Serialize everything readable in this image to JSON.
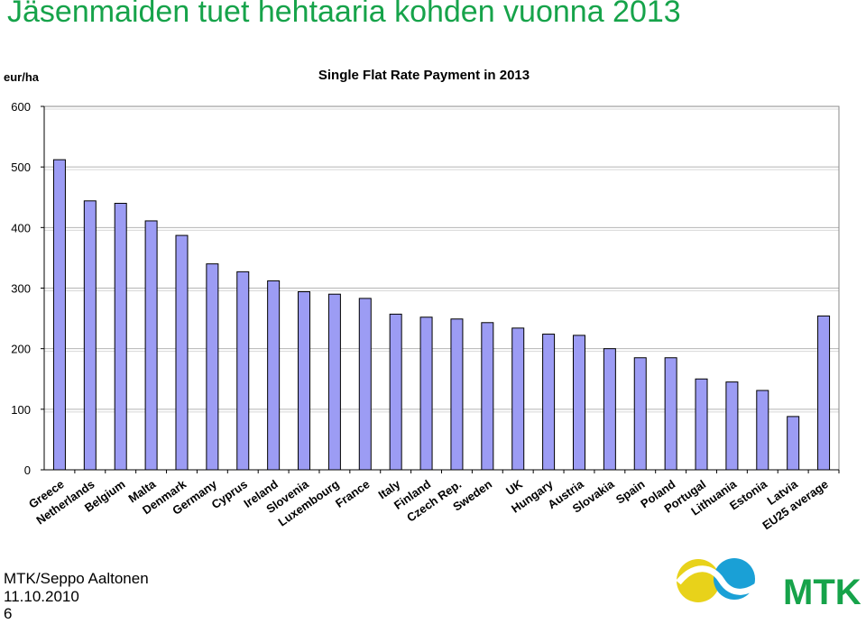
{
  "slide": {
    "title": "Jäsenmaiden tuet hehtaaria kohden vuonna 2013",
    "footer_author": "MTK/Seppo Aaltonen",
    "footer_date": "11.10.2010",
    "page_number": "6",
    "logo_text": "MTK"
  },
  "colors": {
    "title": "#16a34a",
    "bar_fill": "#9c9cf4",
    "bar_stroke": "#000000",
    "logo_yellow": "#e8d21a",
    "logo_blue": "#1aa0d6",
    "logo_green": "#16a34a"
  },
  "chart_data": {
    "type": "bar",
    "title": "Single Flat Rate Payment in 2013",
    "ylabel": "eur/ha",
    "xlabel": "",
    "ylim": [
      0,
      600
    ],
    "yticks": [
      0,
      100,
      200,
      300,
      400,
      500,
      600
    ],
    "grid": true,
    "categories": [
      "Greece",
      "Netherlands",
      "Belgium",
      "Malta",
      "Denmark",
      "Germany",
      "Cyprus",
      "Ireland",
      "Slovenia",
      "Luxembourg",
      "France",
      "Italy",
      "Finland",
      "Czech Rep.",
      "Sweden",
      "UK",
      "Hungary",
      "Austria",
      "Slovakia",
      "Spain",
      "Poland",
      "Portugal",
      "Lithuania",
      "Estonia",
      "Latvia",
      "EU25 average"
    ],
    "values": [
      512,
      444,
      440,
      411,
      387,
      340,
      327,
      312,
      294,
      290,
      283,
      257,
      252,
      249,
      243,
      234,
      224,
      222,
      200,
      185,
      185,
      150,
      145,
      131,
      88,
      254
    ]
  }
}
